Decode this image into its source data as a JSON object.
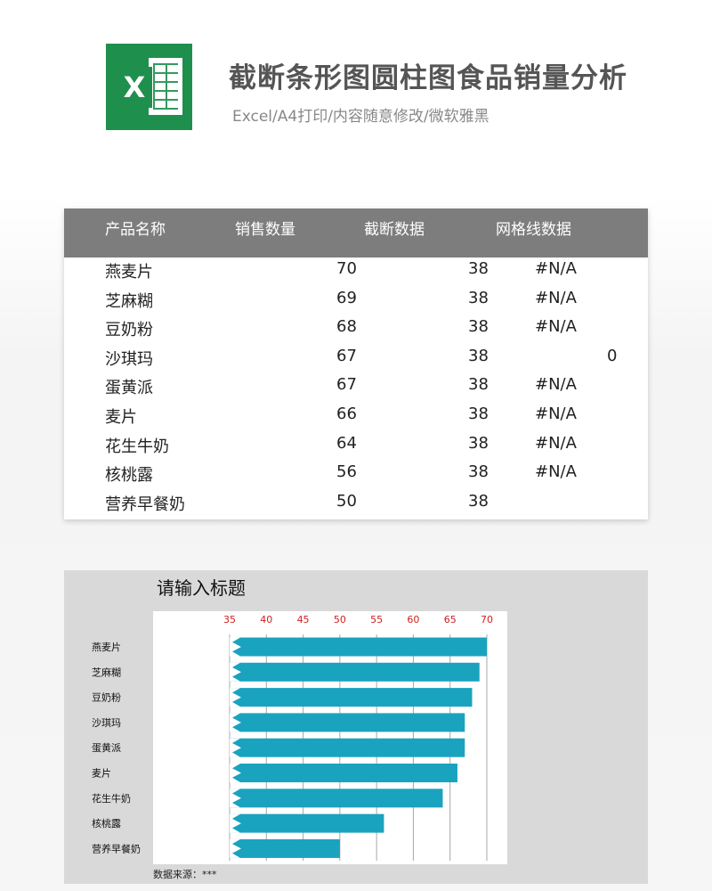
{
  "header": {
    "title": "截断条形图圆柱图食品销量分析",
    "subtitle": "Excel/A4打印/内容随意修改/微软雅黑",
    "logo_letter": "X",
    "logo_icon": "excel-logo-icon",
    "logo_color": "#1f8f4e"
  },
  "table": {
    "headers": [
      "产品名称",
      "销售数量",
      "截断数据",
      "网格线数据"
    ],
    "rows": [
      {
        "name": "燕麦片",
        "sales": "70",
        "break": "38",
        "grid": "#N/A"
      },
      {
        "name": "芝麻糊",
        "sales": "69",
        "break": "38",
        "grid": "#N/A"
      },
      {
        "name": "豆奶粉",
        "sales": "68",
        "break": "38",
        "grid": "#N/A"
      },
      {
        "name": "沙琪玛",
        "sales": "67",
        "break": "38",
        "grid": "0"
      },
      {
        "name": "蛋黄派",
        "sales": "67",
        "break": "38",
        "grid": "#N/A"
      },
      {
        "name": "麦片",
        "sales": "66",
        "break": "38",
        "grid": "#N/A"
      },
      {
        "name": "花生牛奶",
        "sales": "64",
        "break": "38",
        "grid": "#N/A"
      },
      {
        "name": "核桃露",
        "sales": "56",
        "break": "38",
        "grid": "#N/A"
      },
      {
        "name": "营养早餐奶",
        "sales": "50",
        "break": "38",
        "grid": ""
      }
    ],
    "header_color": "#7d7d7d"
  },
  "chart_data": {
    "type": "bar",
    "orientation": "horizontal",
    "title": "请输入标题",
    "categories": [
      "燕麦片",
      "芝麻糊",
      "豆奶粉",
      "沙琪玛",
      "蛋黄派",
      "麦片",
      "花生牛奶",
      "核桃露",
      "营养早餐奶"
    ],
    "values": [
      70,
      69,
      68,
      67,
      67,
      66,
      64,
      56,
      50
    ],
    "xticks": [
      35,
      40,
      45,
      50,
      55,
      60,
      65,
      70
    ],
    "xlim": [
      35,
      70
    ],
    "axis_position": "top",
    "grid": true,
    "break_marker": true,
    "bar_color": "#1aa3be",
    "tick_color": "#d01f1f",
    "source_note": "数据来源：***"
  }
}
